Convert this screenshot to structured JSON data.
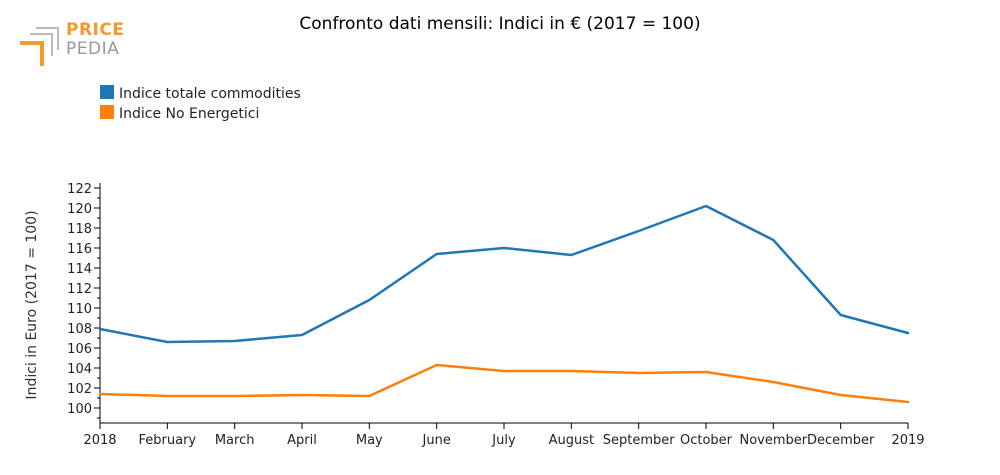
{
  "logo": {
    "line1": "PRICE",
    "line2": "PEDIA"
  },
  "chart_data": {
    "type": "line",
    "title": "Confronto dati mensili: Indici in € (2017 = 100)",
    "ylabel": "Indici in Euro (2017 = 100)",
    "xlabel": "",
    "categories": [
      "2018",
      "February",
      "March",
      "April",
      "May",
      "June",
      "July",
      "August",
      "September",
      "October",
      "November",
      "December",
      "2019"
    ],
    "ylim": [
      98.5,
      122.5
    ],
    "yticks": [
      100,
      102,
      104,
      106,
      108,
      110,
      112,
      114,
      116,
      118,
      120,
      122
    ],
    "grid": false,
    "legend_position": "top-left",
    "series": [
      {
        "name": "Indice totale commodities",
        "color": "#1f77b4",
        "values": [
          107.9,
          106.6,
          106.7,
          107.3,
          110.8,
          115.4,
          116.0,
          115.3,
          117.7,
          120.2,
          116.8,
          109.3,
          107.5
        ]
      },
      {
        "name": "Indice No Energetici",
        "color": "#ff7f0e",
        "values": [
          101.4,
          101.2,
          101.2,
          101.3,
          101.2,
          104.3,
          103.7,
          103.7,
          103.5,
          103.6,
          102.6,
          101.3,
          100.6
        ]
      }
    ]
  }
}
